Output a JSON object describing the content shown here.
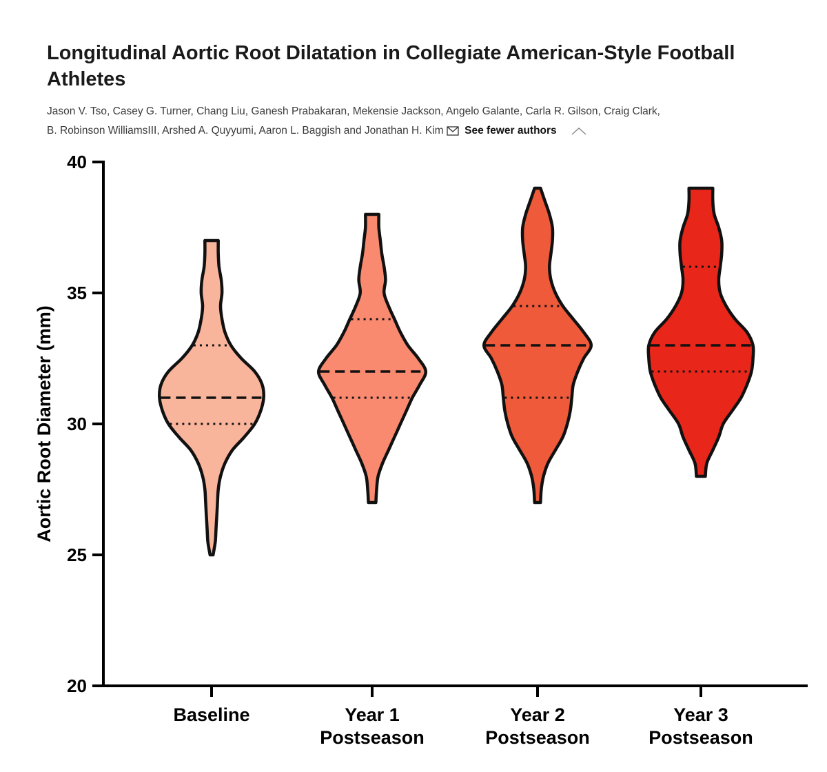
{
  "article": {
    "title": "Longitudinal Aortic Root Dilatation in Collegiate American-Style Football Athletes",
    "authors_line1": "Jason V. Tso, Casey G. Turner, Chang Liu, Ganesh Prabakaran, Mekensie Jackson, Angelo Galante, Carla R. Gilson, Craig Clark,",
    "authors_line2": "B. Robinson WilliamsIII, Arshed A. Quyyumi, Aaron L. Baggish and Jonathan H. Kim",
    "toggle_label": "See fewer authors",
    "mail_icon": "mail-icon",
    "toggle_icon": "chevron-up-icon"
  },
  "chart_data": {
    "type": "violin",
    "title": "",
    "ylabel": "Aortic Root Diameter (mm)",
    "ylim": [
      20,
      40
    ],
    "yticks": [
      20,
      25,
      30,
      35,
      40
    ],
    "categories": [
      {
        "lines": [
          "Baseline"
        ]
      },
      {
        "lines": [
          "Year 1",
          "Postseason"
        ]
      },
      {
        "lines": [
          "Year 2",
          "Postseason"
        ]
      },
      {
        "lines": [
          "Year 3",
          "Postseason"
        ]
      }
    ],
    "series": [
      {
        "name": "Baseline",
        "color": "#F9B49C",
        "min": 25,
        "max": 37,
        "q1": 30,
        "median": 31,
        "q3": 33,
        "density": [
          [
            25,
            0.02
          ],
          [
            25.5,
            0.05
          ],
          [
            26,
            0.06
          ],
          [
            26.5,
            0.07
          ],
          [
            27,
            0.08
          ],
          [
            27.5,
            0.09
          ],
          [
            28,
            0.12
          ],
          [
            28.5,
            0.18
          ],
          [
            29,
            0.28
          ],
          [
            29.5,
            0.44
          ],
          [
            30,
            0.58
          ],
          [
            30.5,
            0.66
          ],
          [
            31,
            0.7
          ],
          [
            31.5,
            0.68
          ],
          [
            32,
            0.58
          ],
          [
            32.5,
            0.4
          ],
          [
            33,
            0.26
          ],
          [
            33.5,
            0.18
          ],
          [
            34,
            0.14
          ],
          [
            34.5,
            0.12
          ],
          [
            35,
            0.14
          ],
          [
            35.5,
            0.13
          ],
          [
            36,
            0.1
          ],
          [
            36.5,
            0.09
          ],
          [
            37,
            0.09
          ]
        ]
      },
      {
        "name": "Year 1 Postseason",
        "color": "#F98A70",
        "min": 27,
        "max": 38,
        "q1": 31,
        "median": 32,
        "q3": 34,
        "density": [
          [
            27,
            0.05
          ],
          [
            27.5,
            0.06
          ],
          [
            28,
            0.08
          ],
          [
            28.5,
            0.14
          ],
          [
            29,
            0.22
          ],
          [
            29.5,
            0.3
          ],
          [
            30,
            0.38
          ],
          [
            30.5,
            0.46
          ],
          [
            31,
            0.54
          ],
          [
            31.5,
            0.64
          ],
          [
            32,
            0.72
          ],
          [
            32.5,
            0.62
          ],
          [
            33,
            0.48
          ],
          [
            33.5,
            0.38
          ],
          [
            34,
            0.3
          ],
          [
            34.5,
            0.22
          ],
          [
            35,
            0.16
          ],
          [
            35.5,
            0.18
          ],
          [
            36,
            0.16
          ],
          [
            36.5,
            0.13
          ],
          [
            37,
            0.11
          ],
          [
            37.5,
            0.09
          ],
          [
            38,
            0.09
          ]
        ]
      },
      {
        "name": "Year 2 Postseason",
        "color": "#EE5A3A",
        "min": 27,
        "max": 39,
        "q1": 31,
        "median": 33,
        "q3": 34.5,
        "density": [
          [
            27,
            0.04
          ],
          [
            27.5,
            0.05
          ],
          [
            28,
            0.08
          ],
          [
            28.5,
            0.14
          ],
          [
            29,
            0.24
          ],
          [
            29.5,
            0.34
          ],
          [
            30,
            0.4
          ],
          [
            30.5,
            0.44
          ],
          [
            31,
            0.46
          ],
          [
            31.5,
            0.48
          ],
          [
            32,
            0.54
          ],
          [
            32.5,
            0.62
          ],
          [
            33,
            0.72
          ],
          [
            33.5,
            0.62
          ],
          [
            34,
            0.48
          ],
          [
            34.5,
            0.34
          ],
          [
            35,
            0.24
          ],
          [
            35.5,
            0.18
          ],
          [
            36,
            0.16
          ],
          [
            36.5,
            0.18
          ],
          [
            37,
            0.2
          ],
          [
            37.5,
            0.2
          ],
          [
            38,
            0.16
          ],
          [
            38.5,
            0.1
          ],
          [
            39,
            0.04
          ]
        ]
      },
      {
        "name": "Year 3 Postseason",
        "color": "#E8261A",
        "min": 28,
        "max": 39,
        "q1": 32,
        "median": 33,
        "q3": 36,
        "density": [
          [
            28,
            0.06
          ],
          [
            28.5,
            0.08
          ],
          [
            29,
            0.16
          ],
          [
            29.5,
            0.24
          ],
          [
            30,
            0.3
          ],
          [
            30.5,
            0.42
          ],
          [
            31,
            0.54
          ],
          [
            31.5,
            0.62
          ],
          [
            32,
            0.68
          ],
          [
            32.5,
            0.7
          ],
          [
            33,
            0.7
          ],
          [
            33.5,
            0.62
          ],
          [
            34,
            0.46
          ],
          [
            34.5,
            0.34
          ],
          [
            35,
            0.26
          ],
          [
            35.5,
            0.24
          ],
          [
            36,
            0.26
          ],
          [
            36.5,
            0.28
          ],
          [
            37,
            0.28
          ],
          [
            37.5,
            0.24
          ],
          [
            38,
            0.18
          ],
          [
            38.5,
            0.16
          ],
          [
            39,
            0.16
          ]
        ]
      }
    ]
  }
}
